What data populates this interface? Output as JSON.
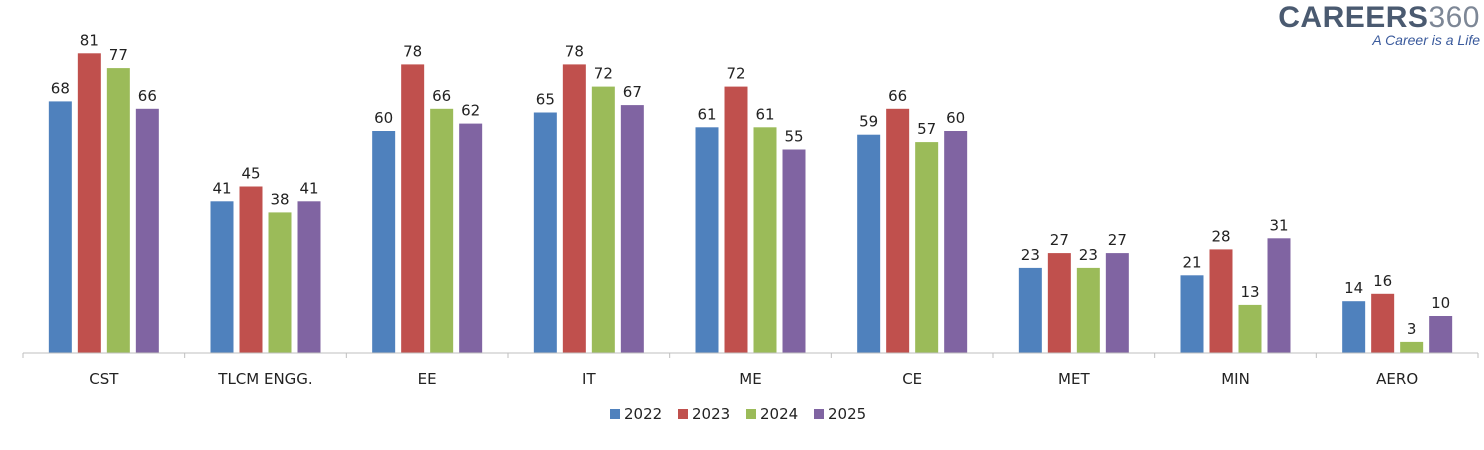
{
  "logo": {
    "brand": "CAREERS",
    "number": "360",
    "tagline": "A Career is a Life"
  },
  "chart_data": {
    "type": "bar",
    "categories": [
      "CST",
      "TLCM ENGG.",
      "EE",
      "IT",
      "ME",
      "CE",
      "MET",
      "MIN",
      "AERO"
    ],
    "series": [
      {
        "name": "2022",
        "color": "#4f81bd",
        "values": [
          68,
          41,
          60,
          65,
          61,
          59,
          23,
          21,
          14
        ]
      },
      {
        "name": "2023",
        "color": "#c0504d",
        "values": [
          81,
          45,
          78,
          78,
          72,
          66,
          27,
          28,
          16
        ]
      },
      {
        "name": "2024",
        "color": "#9bbb59",
        "values": [
          77,
          38,
          66,
          72,
          61,
          57,
          23,
          13,
          3
        ]
      },
      {
        "name": "2025",
        "color": "#8064a2",
        "values": [
          66,
          41,
          62,
          67,
          55,
          60,
          27,
          31,
          10
        ]
      }
    ],
    "title": "",
    "xlabel": "",
    "ylabel": "",
    "ylim": [
      0,
      81
    ],
    "grid": false,
    "legend": "bottom-center",
    "data_labels": true
  }
}
